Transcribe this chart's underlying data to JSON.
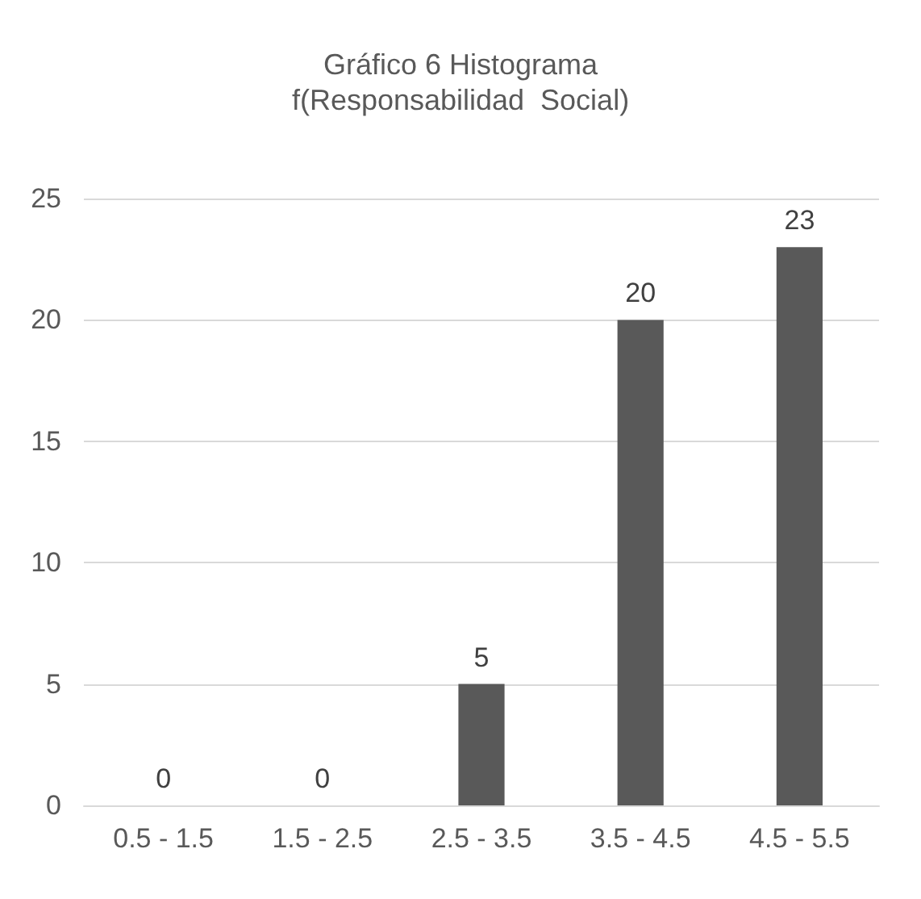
{
  "chart_data": {
    "type": "bar",
    "title": "Gráfico 6 Histograma",
    "subtitle": "f(Responsabilidad  Social)",
    "categories": [
      "0.5 - 1.5",
      "1.5 - 2.5",
      "2.5 - 3.5",
      "3.5 - 4.5",
      "4.5 - 5.5"
    ],
    "values": [
      0,
      0,
      5,
      20,
      23
    ],
    "color": "#595959",
    "ylim": [
      0,
      25
    ],
    "yticks": [
      0,
      5,
      10,
      15,
      20,
      25
    ],
    "grid": "y",
    "data_labels": true
  }
}
